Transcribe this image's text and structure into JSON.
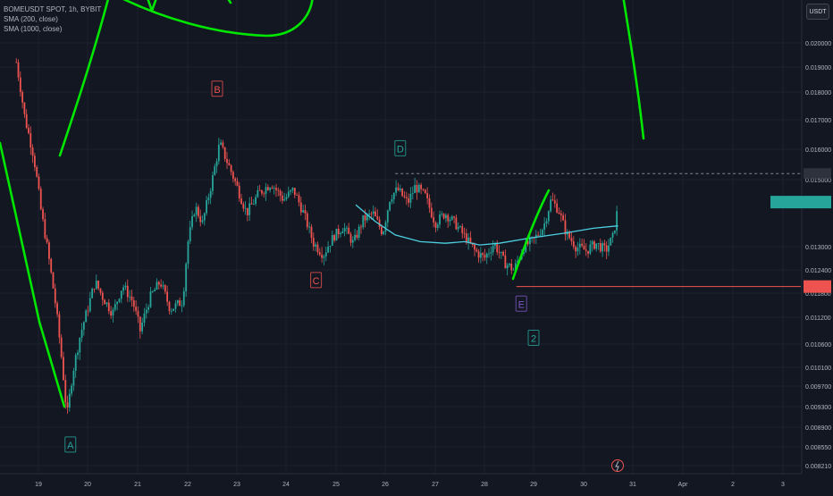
{
  "legend": {
    "symbol_line": "BOMEUSDT SPOT, 1h, BYBIT",
    "sma200": "SMA (200, close)",
    "sma1000": "SMA (1000, close)"
  },
  "currency_button": "USDT",
  "colors": {
    "background": "#131722",
    "up": "#26a69a",
    "down": "#ef5350",
    "sma": "#4dd0e1",
    "drawing": "#00e600",
    "price_tag": "#26a69a",
    "support_line": "#ef5350",
    "axis_text": "#b2b5be"
  },
  "chart_data": {
    "type": "candlestick",
    "title": "BOMEUSDT SPOT, 1h, BYBIT",
    "x_ticks": [
      "19",
      "20",
      "21",
      "22",
      "23",
      "24",
      "25",
      "26",
      "27",
      "28",
      "29",
      "30",
      "31",
      "Apr",
      "2",
      "3"
    ],
    "y_ticks": [
      "0.020000",
      "0.019000",
      "0.018000",
      "0.017000",
      "0.016000",
      "0.015000",
      "0.013000",
      "0.012400",
      "0.011800",
      "0.011200",
      "0.010600",
      "0.010100",
      "0.009700",
      "0.009300",
      "0.008900",
      "0.008550",
      "0.008210"
    ],
    "ylim": [
      0.0081,
      0.0213
    ],
    "xlim": [
      18.55,
      34.3
    ],
    "series_points": [
      {
        "x": 18.55,
        "p": 0.0192
      },
      {
        "x": 18.72,
        "p": 0.0171
      },
      {
        "x": 18.9,
        "p": 0.0158
      },
      {
        "x": 19.05,
        "p": 0.0141
      },
      {
        "x": 19.2,
        "p": 0.0128
      },
      {
        "x": 19.35,
        "p": 0.0115
      },
      {
        "x": 19.48,
        "p": 0.0102
      },
      {
        "x": 19.58,
        "p": 0.0091
      },
      {
        "x": 19.7,
        "p": 0.01
      },
      {
        "x": 19.85,
        "p": 0.0108
      },
      {
        "x": 20.0,
        "p": 0.0114
      },
      {
        "x": 20.15,
        "p": 0.0121
      },
      {
        "x": 20.3,
        "p": 0.0117
      },
      {
        "x": 20.5,
        "p": 0.0113
      },
      {
        "x": 20.7,
        "p": 0.012
      },
      {
        "x": 20.9,
        "p": 0.0116
      },
      {
        "x": 21.05,
        "p": 0.0109
      },
      {
        "x": 21.25,
        "p": 0.0117
      },
      {
        "x": 21.45,
        "p": 0.0121
      },
      {
        "x": 21.65,
        "p": 0.0114
      },
      {
        "x": 21.9,
        "p": 0.0116
      },
      {
        "x": 22.0,
        "p": 0.0131
      },
      {
        "x": 22.15,
        "p": 0.0142
      },
      {
        "x": 22.3,
        "p": 0.0137
      },
      {
        "x": 22.5,
        "p": 0.015
      },
      {
        "x": 22.65,
        "p": 0.0162
      },
      {
        "x": 22.85,
        "p": 0.0154
      },
      {
        "x": 23.0,
        "p": 0.0148
      },
      {
        "x": 23.2,
        "p": 0.014
      },
      {
        "x": 23.45,
        "p": 0.0146
      },
      {
        "x": 23.7,
        "p": 0.0149
      },
      {
        "x": 23.95,
        "p": 0.0144
      },
      {
        "x": 24.15,
        "p": 0.0147
      },
      {
        "x": 24.35,
        "p": 0.014
      },
      {
        "x": 24.55,
        "p": 0.0131
      },
      {
        "x": 24.75,
        "p": 0.0128
      },
      {
        "x": 24.95,
        "p": 0.0133
      },
      {
        "x": 25.15,
        "p": 0.0136
      },
      {
        "x": 25.35,
        "p": 0.0131
      },
      {
        "x": 25.55,
        "p": 0.0138
      },
      {
        "x": 25.75,
        "p": 0.014
      },
      {
        "x": 25.95,
        "p": 0.0134
      },
      {
        "x": 26.1,
        "p": 0.0145
      },
      {
        "x": 26.25,
        "p": 0.0147
      },
      {
        "x": 26.45,
        "p": 0.0143
      },
      {
        "x": 26.6,
        "p": 0.0148
      },
      {
        "x": 26.8,
        "p": 0.0145
      },
      {
        "x": 27.0,
        "p": 0.0137
      },
      {
        "x": 27.2,
        "p": 0.014
      },
      {
        "x": 27.4,
        "p": 0.0137
      },
      {
        "x": 27.6,
        "p": 0.0133
      },
      {
        "x": 27.8,
        "p": 0.0129
      },
      {
        "x": 28.0,
        "p": 0.0127
      },
      {
        "x": 28.2,
        "p": 0.0131
      },
      {
        "x": 28.4,
        "p": 0.0126
      },
      {
        "x": 28.6,
        "p": 0.0124
      },
      {
        "x": 28.8,
        "p": 0.013
      },
      {
        "x": 29.0,
        "p": 0.0132
      },
      {
        "x": 29.2,
        "p": 0.0136
      },
      {
        "x": 29.35,
        "p": 0.0144
      },
      {
        "x": 29.5,
        "p": 0.0141
      },
      {
        "x": 29.65,
        "p": 0.0134
      },
      {
        "x": 29.85,
        "p": 0.013
      },
      {
        "x": 30.05,
        "p": 0.0129
      },
      {
        "x": 30.25,
        "p": 0.0131
      },
      {
        "x": 30.45,
        "p": 0.0129
      },
      {
        "x": 30.6,
        "p": 0.0133
      },
      {
        "x": 30.7,
        "p": 0.0142
      }
    ],
    "sma_points": [
      {
        "x": 25.4,
        "p": 0.01425
      },
      {
        "x": 25.8,
        "p": 0.01375
      },
      {
        "x": 26.2,
        "p": 0.01335
      },
      {
        "x": 26.7,
        "p": 0.01315
      },
      {
        "x": 27.2,
        "p": 0.0131
      },
      {
        "x": 27.6,
        "p": 0.01315
      },
      {
        "x": 27.9,
        "p": 0.01305
      },
      {
        "x": 28.3,
        "p": 0.0131
      },
      {
        "x": 28.9,
        "p": 0.01325
      },
      {
        "x": 29.6,
        "p": 0.0134
      },
      {
        "x": 30.2,
        "p": 0.01355
      },
      {
        "x": 30.7,
        "p": 0.01362
      }
    ],
    "wave_labels": [
      {
        "text": "A",
        "x": 19.65,
        "p": 0.0086,
        "color": "#26a69a",
        "style": "up"
      },
      {
        "text": "B",
        "x": 22.6,
        "p": 0.01815,
        "color": "#ef5350",
        "style": "down"
      },
      {
        "text": "C",
        "x": 24.6,
        "p": 0.01215,
        "color": "#ef5350",
        "style": "down"
      },
      {
        "text": "D",
        "x": 26.3,
        "p": 0.01605,
        "color": "#26a69a",
        "style": "up"
      },
      {
        "text": "E",
        "x": 28.75,
        "p": 0.01155,
        "color": "#7e57c2",
        "style": "neutral"
      },
      {
        "text": "2",
        "x": 29.0,
        "p": 0.01075,
        "color": "#26a69a",
        "style": "up"
      }
    ],
    "dashed_line": {
      "x_start": 26.2,
      "p": 0.0152
    },
    "support_line": {
      "x_start": 28.65,
      "p": 0.01197
    },
    "current_price_tag_price": 0.01433,
    "support_tag_price": 0.01197,
    "dashed_tag_price": 0.0152
  }
}
